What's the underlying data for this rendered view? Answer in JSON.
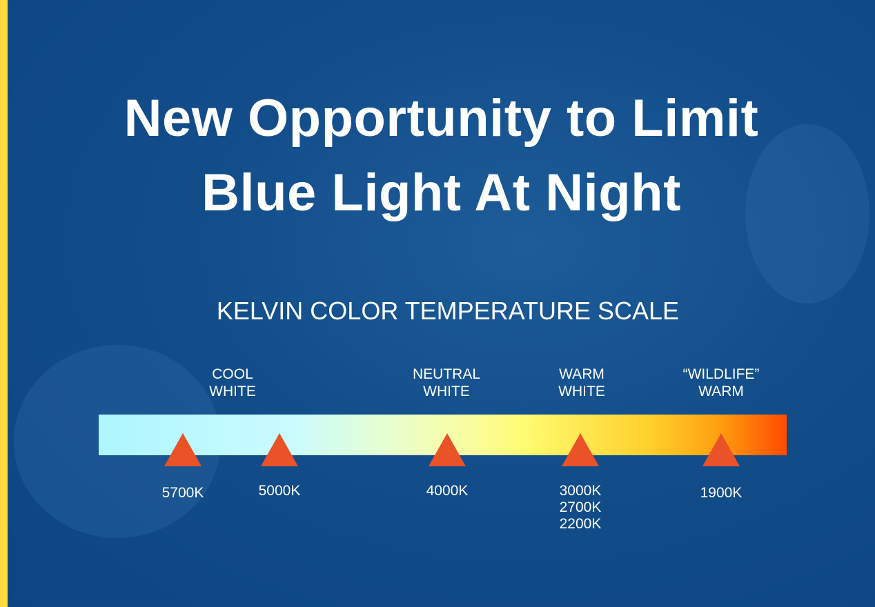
{
  "title_lines": [
    "New Opportunity to Limit",
    "Blue Light At Night"
  ],
  "subtitle": "KELVIN COLOR TEMPERATURE SCALE",
  "categories": [
    {
      "lines": [
        "COOL",
        "WHITE"
      ]
    },
    {
      "lines": [
        "NEUTRAL",
        "WHITE"
      ]
    },
    {
      "lines": [
        "WARM",
        "WHITE"
      ]
    },
    {
      "lines": [
        "“WILDLIFE”",
        "WARM"
      ]
    }
  ],
  "markers": [
    {
      "values": [
        "5700K"
      ]
    },
    {
      "values": [
        "5000K"
      ]
    },
    {
      "values": [
        "4000K"
      ]
    },
    {
      "values": [
        "3000K",
        "2700K",
        "2200K"
      ]
    },
    {
      "values": [
        "1900K"
      ]
    }
  ],
  "colors": {
    "accent_stripe": "#fddc3c",
    "marker": "#ea5228",
    "background": "#124d8a"
  }
}
